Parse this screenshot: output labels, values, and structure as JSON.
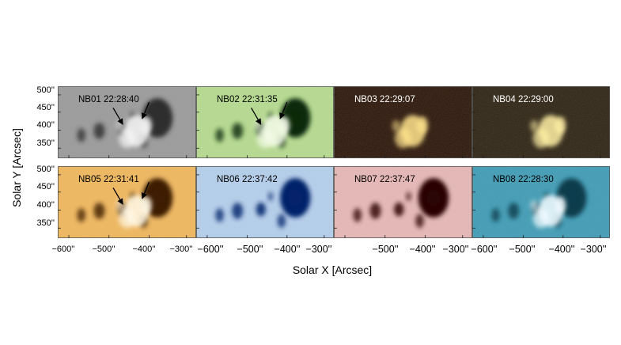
{
  "figure": {
    "ylabel": "Solar Y [Arcsec]",
    "xlabel": "Solar X [Arcsec]",
    "y_ticks": [
      "500''",
      "450''",
      "400''",
      "350''"
    ],
    "x_ticks_col1": [
      "−600''",
      "−500''",
      "−400''",
      "−300''"
    ],
    "x_ticks_col2": [
      "−600''",
      "−500''",
      "−400''",
      "−300''"
    ],
    "x_ticks_col4": [
      "−600''",
      "−500''",
      "−400''",
      "−300''"
    ],
    "x_ticks_col3": [
      "−500''",
      "−400''",
      "−300''"
    ]
  },
  "panels": [
    {
      "label": "NB01 22:28:40",
      "bg": "#9a9a9a",
      "dark": "#2e2e2e",
      "bright": "#f4f4f4",
      "label_color": "#000000",
      "arrows": true,
      "mode": "mixed"
    },
    {
      "label": "NB02 22:31:35",
      "bg": "#b6dc8e",
      "dark": "#0e2a08",
      "bright": "#f4fbe8",
      "label_color": "#000000",
      "arrows": true,
      "mode": "mixed"
    },
    {
      "label": "NB03 22:29:07",
      "bg": "#2a1306",
      "dark": "#100603",
      "bright": "#ffe38c",
      "label_color": "#ffffff",
      "arrows": false,
      "mode": "bright"
    },
    {
      "label": "NB04 22:29:00",
      "bg": "#2c2110",
      "dark": "#120c05",
      "bright": "#fff0a4",
      "label_color": "#ffffff",
      "arrows": false,
      "mode": "bright"
    },
    {
      "label": "NB05 22:31:41",
      "bg": "#f2b85a",
      "dark": "#3e1e04",
      "bright": "#fff8e6",
      "label_color": "#000000",
      "arrows": true,
      "mode": "mixed"
    },
    {
      "label": "NB06 22:37:42",
      "bg": "#b4d0ee",
      "dark": "#06236a",
      "bright": "#e8f2fc",
      "label_color": "#000000",
      "arrows": false,
      "mode": "dark"
    },
    {
      "label": "NB07 22:37:47",
      "bg": "#e8b8b6",
      "dark": "#2a0606",
      "bright": "#f8e4e2",
      "label_color": "#000000",
      "arrows": false,
      "mode": "dark"
    },
    {
      "label": "NB08 22:28:30",
      "bg": "#3d9cb6",
      "dark": "#0c3c4e",
      "bright": "#f2fbff",
      "label_color": "#000000",
      "arrows": false,
      "mode": "mixed"
    }
  ]
}
